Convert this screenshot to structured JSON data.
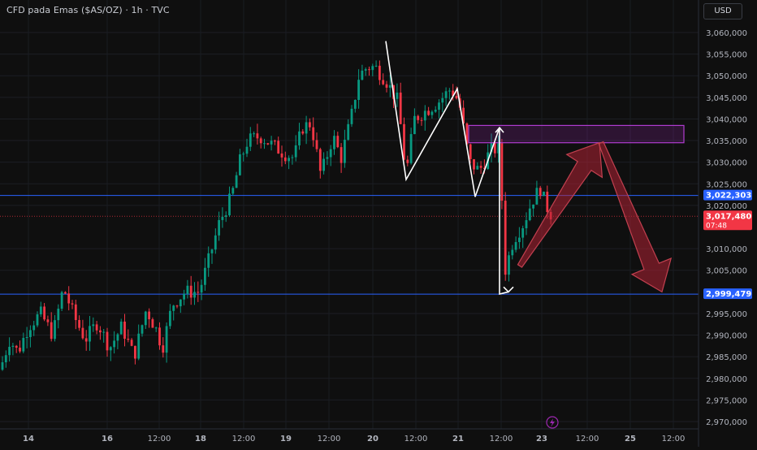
{
  "header": {
    "title": "CFD pada Emas ($AS/OZ) · 1h · TVC",
    "currency": "USD"
  },
  "chart_data": {
    "type": "candlestick",
    "title": "CFD pada Emas ($AS/OZ) · 1h · TVC",
    "ylim": [
      2967500,
      3062500
    ],
    "y_ticks": [
      {
        "value": 3060000,
        "label": "3,060,000"
      },
      {
        "value": 3055000,
        "label": "3,055,000"
      },
      {
        "value": 3050000,
        "label": "3,050,000"
      },
      {
        "value": 3045000,
        "label": "3,045,000"
      },
      {
        "value": 3040000,
        "label": "3,040,000"
      },
      {
        "value": 3035000,
        "label": "3,035,000"
      },
      {
        "value": 3030000,
        "label": "3,030,000"
      },
      {
        "value": 3025000,
        "label": "3,025,000"
      },
      {
        "value": 3020000,
        "label": "3,020,000"
      },
      {
        "value": 3010000,
        "label": "3,010,000"
      },
      {
        "value": 3005000,
        "label": "3,005,000"
      },
      {
        "value": 2995000,
        "label": "2,995,000"
      },
      {
        "value": 2990000,
        "label": "2,990,000"
      },
      {
        "value": 2985000,
        "label": "2,985,000"
      },
      {
        "value": 2980000,
        "label": "2,980,000"
      },
      {
        "value": 2975000,
        "label": "2,975,000"
      },
      {
        "value": 2970000,
        "label": "2,970,000"
      }
    ],
    "x_ticks": [
      "14",
      "16",
      "12:00",
      "18",
      "12:00",
      "19",
      "12:00",
      "20",
      "12:00",
      "21",
      "12:00",
      "23",
      "12:00",
      "25",
      "12:00"
    ],
    "bold_x_ticks": [
      "14",
      "16",
      "18",
      "19",
      "20",
      "21",
      "23",
      "25"
    ],
    "price_labels": [
      {
        "name": "upper-line",
        "value": 3022303,
        "label": "3,022,303",
        "color": "#2962ff"
      },
      {
        "name": "current-price",
        "value": 3017480,
        "label": "3,017,480",
        "sublabel": "07:48",
        "color": "#f23645"
      },
      {
        "name": "lower-line",
        "value": 2999479,
        "label": "2,999,479",
        "color": "#2962ff"
      }
    ],
    "candle_path": [
      [
        0,
        2982000
      ],
      [
        12,
        2989000
      ],
      [
        22,
        2986000
      ],
      [
        35,
        2992000
      ],
      [
        50,
        2995000
      ],
      [
        65,
        2990000
      ],
      [
        78,
        3001000
      ],
      [
        92,
        2994000
      ],
      [
        105,
        2989000
      ],
      [
        120,
        2993000
      ],
      [
        135,
        2987000
      ],
      [
        150,
        2992000
      ],
      [
        165,
        2985000
      ],
      [
        180,
        2996000
      ],
      [
        193,
        2991000
      ],
      [
        200,
        2987000
      ],
      [
        212,
        2997000
      ],
      [
        228,
        3000000
      ],
      [
        245,
        3000000
      ],
      [
        258,
        3008000
      ],
      [
        270,
        3016000
      ],
      [
        285,
        3022000
      ],
      [
        295,
        3030000
      ],
      [
        305,
        3035000
      ],
      [
        320,
        3036000
      ],
      [
        335,
        3034000
      ],
      [
        350,
        3032000
      ],
      [
        362,
        3031000
      ],
      [
        372,
        3038000
      ],
      [
        383,
        3039000
      ],
      [
        395,
        3027000
      ],
      [
        410,
        3036000
      ],
      [
        420,
        3031000
      ],
      [
        432,
        3040000
      ],
      [
        442,
        3050000
      ],
      [
        452,
        3052000
      ],
      [
        462,
        3052000
      ],
      [
        475,
        3049000
      ],
      [
        490,
        3044000
      ],
      [
        500,
        3027000
      ],
      [
        510,
        3040000
      ],
      [
        525,
        3042000
      ],
      [
        540,
        3044000
      ],
      [
        555,
        3047000
      ],
      [
        565,
        3044000
      ],
      [
        578,
        3030000
      ],
      [
        590,
        3028000
      ],
      [
        605,
        3033000
      ],
      [
        615,
        3033000
      ],
      [
        622,
        3005000
      ],
      [
        632,
        3012000
      ],
      [
        645,
        3016000
      ],
      [
        655,
        3021000
      ],
      [
        665,
        3024000
      ],
      [
        672,
        3020000
      ],
      [
        680,
        3017500
      ]
    ],
    "annotations": {
      "zigzag_white": [
        [
          475,
          3058000
        ],
        [
          500,
          3026000
        ],
        [
          563,
          3047000
        ],
        [
          585,
          3022000
        ],
        [
          615,
          3038000
        ],
        [
          615,
          2999500
        ],
        [
          626,
          3000000
        ]
      ],
      "supply_zone": {
        "x1": 577,
        "x2": 842,
        "y1": 3038500,
        "y2": 3034500,
        "color": "#9c27b0"
      },
      "arrow_up": {
        "from": [
          640,
          3006000
        ],
        "to": [
          738,
          3034500
        ]
      },
      "arrow_down": {
        "from": [
          740,
          3034500
        ],
        "to": [
          815,
          3000000
        ]
      }
    },
    "lightning_icon": true,
    "grid": true
  }
}
